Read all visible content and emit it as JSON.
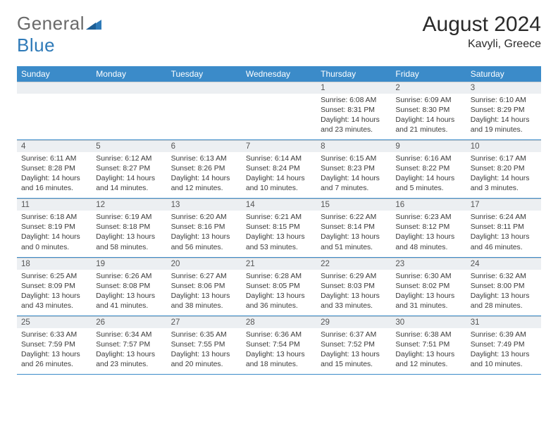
{
  "brand": {
    "part1": "General",
    "part2": "Blue"
  },
  "title": "August 2024",
  "location": "Kavyli, Greece",
  "colors": {
    "header_bg": "#3b8bc9",
    "header_text": "#ffffff",
    "daynum_bg": "#eceff2",
    "daynum_text": "#555555",
    "cell_text": "#3a3a3a",
    "rule": "#3b8bc9",
    "logo_gray": "#6a6a6a",
    "logo_accent": "#2e7ab8"
  },
  "weekdays": [
    "Sunday",
    "Monday",
    "Tuesday",
    "Wednesday",
    "Thursday",
    "Friday",
    "Saturday"
  ],
  "weeks": [
    [
      null,
      null,
      null,
      null,
      {
        "n": "1",
        "sunrise": "Sunrise: 6:08 AM",
        "sunset": "Sunset: 8:31 PM",
        "day1": "Daylight: 14 hours",
        "day2": "and 23 minutes."
      },
      {
        "n": "2",
        "sunrise": "Sunrise: 6:09 AM",
        "sunset": "Sunset: 8:30 PM",
        "day1": "Daylight: 14 hours",
        "day2": "and 21 minutes."
      },
      {
        "n": "3",
        "sunrise": "Sunrise: 6:10 AM",
        "sunset": "Sunset: 8:29 PM",
        "day1": "Daylight: 14 hours",
        "day2": "and 19 minutes."
      }
    ],
    [
      {
        "n": "4",
        "sunrise": "Sunrise: 6:11 AM",
        "sunset": "Sunset: 8:28 PM",
        "day1": "Daylight: 14 hours",
        "day2": "and 16 minutes."
      },
      {
        "n": "5",
        "sunrise": "Sunrise: 6:12 AM",
        "sunset": "Sunset: 8:27 PM",
        "day1": "Daylight: 14 hours",
        "day2": "and 14 minutes."
      },
      {
        "n": "6",
        "sunrise": "Sunrise: 6:13 AM",
        "sunset": "Sunset: 8:26 PM",
        "day1": "Daylight: 14 hours",
        "day2": "and 12 minutes."
      },
      {
        "n": "7",
        "sunrise": "Sunrise: 6:14 AM",
        "sunset": "Sunset: 8:24 PM",
        "day1": "Daylight: 14 hours",
        "day2": "and 10 minutes."
      },
      {
        "n": "8",
        "sunrise": "Sunrise: 6:15 AM",
        "sunset": "Sunset: 8:23 PM",
        "day1": "Daylight: 14 hours",
        "day2": "and 7 minutes."
      },
      {
        "n": "9",
        "sunrise": "Sunrise: 6:16 AM",
        "sunset": "Sunset: 8:22 PM",
        "day1": "Daylight: 14 hours",
        "day2": "and 5 minutes."
      },
      {
        "n": "10",
        "sunrise": "Sunrise: 6:17 AM",
        "sunset": "Sunset: 8:20 PM",
        "day1": "Daylight: 14 hours",
        "day2": "and 3 minutes."
      }
    ],
    [
      {
        "n": "11",
        "sunrise": "Sunrise: 6:18 AM",
        "sunset": "Sunset: 8:19 PM",
        "day1": "Daylight: 14 hours",
        "day2": "and 0 minutes."
      },
      {
        "n": "12",
        "sunrise": "Sunrise: 6:19 AM",
        "sunset": "Sunset: 8:18 PM",
        "day1": "Daylight: 13 hours",
        "day2": "and 58 minutes."
      },
      {
        "n": "13",
        "sunrise": "Sunrise: 6:20 AM",
        "sunset": "Sunset: 8:16 PM",
        "day1": "Daylight: 13 hours",
        "day2": "and 56 minutes."
      },
      {
        "n": "14",
        "sunrise": "Sunrise: 6:21 AM",
        "sunset": "Sunset: 8:15 PM",
        "day1": "Daylight: 13 hours",
        "day2": "and 53 minutes."
      },
      {
        "n": "15",
        "sunrise": "Sunrise: 6:22 AM",
        "sunset": "Sunset: 8:14 PM",
        "day1": "Daylight: 13 hours",
        "day2": "and 51 minutes."
      },
      {
        "n": "16",
        "sunrise": "Sunrise: 6:23 AM",
        "sunset": "Sunset: 8:12 PM",
        "day1": "Daylight: 13 hours",
        "day2": "and 48 minutes."
      },
      {
        "n": "17",
        "sunrise": "Sunrise: 6:24 AM",
        "sunset": "Sunset: 8:11 PM",
        "day1": "Daylight: 13 hours",
        "day2": "and 46 minutes."
      }
    ],
    [
      {
        "n": "18",
        "sunrise": "Sunrise: 6:25 AM",
        "sunset": "Sunset: 8:09 PM",
        "day1": "Daylight: 13 hours",
        "day2": "and 43 minutes."
      },
      {
        "n": "19",
        "sunrise": "Sunrise: 6:26 AM",
        "sunset": "Sunset: 8:08 PM",
        "day1": "Daylight: 13 hours",
        "day2": "and 41 minutes."
      },
      {
        "n": "20",
        "sunrise": "Sunrise: 6:27 AM",
        "sunset": "Sunset: 8:06 PM",
        "day1": "Daylight: 13 hours",
        "day2": "and 38 minutes."
      },
      {
        "n": "21",
        "sunrise": "Sunrise: 6:28 AM",
        "sunset": "Sunset: 8:05 PM",
        "day1": "Daylight: 13 hours",
        "day2": "and 36 minutes."
      },
      {
        "n": "22",
        "sunrise": "Sunrise: 6:29 AM",
        "sunset": "Sunset: 8:03 PM",
        "day1": "Daylight: 13 hours",
        "day2": "and 33 minutes."
      },
      {
        "n": "23",
        "sunrise": "Sunrise: 6:30 AM",
        "sunset": "Sunset: 8:02 PM",
        "day1": "Daylight: 13 hours",
        "day2": "and 31 minutes."
      },
      {
        "n": "24",
        "sunrise": "Sunrise: 6:32 AM",
        "sunset": "Sunset: 8:00 PM",
        "day1": "Daylight: 13 hours",
        "day2": "and 28 minutes."
      }
    ],
    [
      {
        "n": "25",
        "sunrise": "Sunrise: 6:33 AM",
        "sunset": "Sunset: 7:59 PM",
        "day1": "Daylight: 13 hours",
        "day2": "and 26 minutes."
      },
      {
        "n": "26",
        "sunrise": "Sunrise: 6:34 AM",
        "sunset": "Sunset: 7:57 PM",
        "day1": "Daylight: 13 hours",
        "day2": "and 23 minutes."
      },
      {
        "n": "27",
        "sunrise": "Sunrise: 6:35 AM",
        "sunset": "Sunset: 7:55 PM",
        "day1": "Daylight: 13 hours",
        "day2": "and 20 minutes."
      },
      {
        "n": "28",
        "sunrise": "Sunrise: 6:36 AM",
        "sunset": "Sunset: 7:54 PM",
        "day1": "Daylight: 13 hours",
        "day2": "and 18 minutes."
      },
      {
        "n": "29",
        "sunrise": "Sunrise: 6:37 AM",
        "sunset": "Sunset: 7:52 PM",
        "day1": "Daylight: 13 hours",
        "day2": "and 15 minutes."
      },
      {
        "n": "30",
        "sunrise": "Sunrise: 6:38 AM",
        "sunset": "Sunset: 7:51 PM",
        "day1": "Daylight: 13 hours",
        "day2": "and 12 minutes."
      },
      {
        "n": "31",
        "sunrise": "Sunrise: 6:39 AM",
        "sunset": "Sunset: 7:49 PM",
        "day1": "Daylight: 13 hours",
        "day2": "and 10 minutes."
      }
    ]
  ]
}
